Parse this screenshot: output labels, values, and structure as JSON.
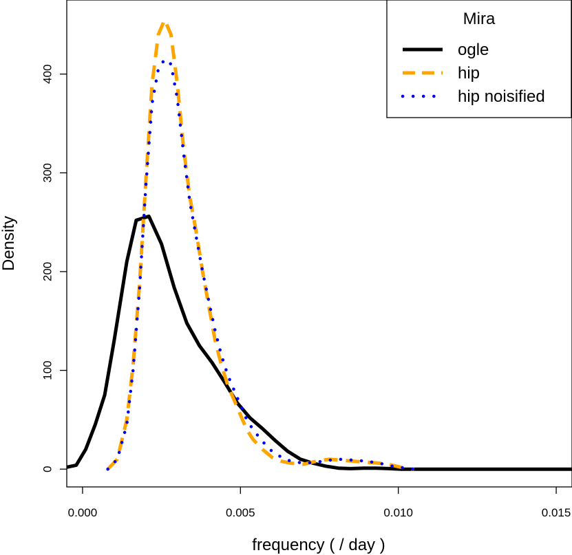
{
  "chart_data": {
    "type": "line",
    "xlabel": "frequency ( / day )",
    "ylabel": "Density",
    "xlim": [
      -0.0005,
      0.0155
    ],
    "ylim": [
      -18,
      475
    ],
    "x_ticks": [
      0.0,
      0.005,
      0.01,
      0.015
    ],
    "x_tick_labels": [
      "0.000",
      "0.005",
      "0.010",
      "0.015"
    ],
    "y_ticks": [
      0,
      100,
      200,
      300,
      400
    ],
    "y_tick_labels": [
      "0",
      "100",
      "200",
      "300",
      "400"
    ],
    "grid": false,
    "legend": {
      "title": "Mira",
      "position": "top-right"
    },
    "series": [
      {
        "name": "ogle",
        "color": "#000000",
        "line_style": "solid",
        "x": [
          -0.0005,
          -0.0002,
          0.0001,
          0.0004,
          0.0007,
          0.001,
          0.0014,
          0.0017,
          0.0021,
          0.0025,
          0.0029,
          0.0033,
          0.0037,
          0.0041,
          0.0045,
          0.0049,
          0.0053,
          0.0057,
          0.0061,
          0.0065,
          0.0069,
          0.0073,
          0.0077,
          0.0081,
          0.0085,
          0.0089,
          0.0093,
          0.0097,
          0.0101,
          0.0105,
          0.011,
          0.0115,
          0.012,
          0.0125,
          0.013,
          0.0135,
          0.014,
          0.0145,
          0.015,
          0.0155
        ],
        "y": [
          2,
          4,
          20,
          45,
          75,
          130,
          210,
          252,
          256,
          228,
          184,
          148,
          125,
          108,
          88,
          67,
          52,
          41,
          29,
          18,
          10,
          6,
          3,
          1,
          0.5,
          1,
          1,
          0.5,
          0,
          0,
          0,
          0,
          0,
          0,
          0,
          0,
          0,
          0,
          0,
          0
        ]
      },
      {
        "name": "hip",
        "color": "#FFA500",
        "line_style": "dashed",
        "x": [
          0.0008,
          0.0011,
          0.0014,
          0.0016,
          0.0018,
          0.002,
          0.0022,
          0.0024,
          0.0026,
          0.0028,
          0.003,
          0.0032,
          0.0034,
          0.0036,
          0.0038,
          0.004,
          0.0042,
          0.0044,
          0.0046,
          0.0048,
          0.005,
          0.0052,
          0.0054,
          0.0057,
          0.006,
          0.0063,
          0.0066,
          0.007,
          0.0074,
          0.0078,
          0.0082,
          0.0086,
          0.009,
          0.0094,
          0.0098,
          0.0102,
          0.0105
        ],
        "y": [
          0,
          10,
          50,
          105,
          185,
          290,
          390,
          440,
          455,
          440,
          390,
          325,
          275,
          240,
          200,
          165,
          130,
          105,
          85,
          70,
          55,
          40,
          30,
          20,
          12,
          8,
          6,
          5,
          8,
          10,
          9,
          8,
          7,
          6,
          4,
          1,
          0
        ]
      },
      {
        "name": "hip noisified",
        "color": "#0000EE",
        "line_style": "dotted",
        "x": [
          0.0008,
          0.0011,
          0.0014,
          0.0016,
          0.0018,
          0.002,
          0.0022,
          0.0024,
          0.0026,
          0.0028,
          0.003,
          0.0032,
          0.0034,
          0.0036,
          0.0038,
          0.004,
          0.0042,
          0.0044,
          0.0046,
          0.0048,
          0.005,
          0.0052,
          0.0054,
          0.0057,
          0.006,
          0.0063,
          0.0066,
          0.007,
          0.0074,
          0.0078,
          0.0082,
          0.0086,
          0.009,
          0.0094,
          0.0098,
          0.0102,
          0.0105
        ],
        "y": [
          0,
          10,
          45,
          100,
          180,
          285,
          370,
          405,
          415,
          410,
          375,
          320,
          270,
          235,
          200,
          170,
          140,
          115,
          95,
          80,
          65,
          50,
          40,
          28,
          18,
          12,
          8,
          6,
          7,
          9,
          10,
          9,
          8,
          6,
          3,
          1,
          0
        ]
      }
    ]
  }
}
